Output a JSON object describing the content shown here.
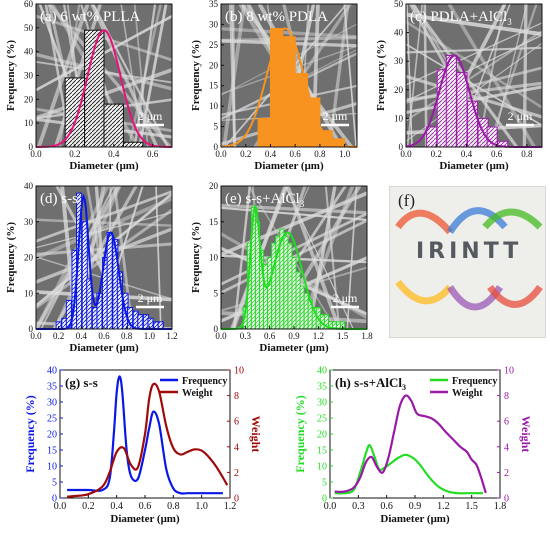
{
  "colors": {
    "sem_bg": "#6f6f6f",
    "fiber": "#dcdcdc",
    "pink": "#e8137a",
    "blue": "#0a18e6",
    "darkred": "#a00a0a",
    "green": "#22dd22",
    "purple": "#9a1aa8",
    "orange": "#f7931e",
    "black": "#111111"
  },
  "common": {
    "xlabel": "Diameter (μm)",
    "ylabel": "Frequency (%)",
    "scale_bar": "2 μm"
  },
  "panel_f": {
    "label": "(f)",
    "logo_text": "IRINTT"
  },
  "chart_data": [
    {
      "id": "a",
      "type": "bar",
      "title": "(a) 6 wt% PLLA",
      "xlabel": "Diameter (μm)",
      "ylabel": "Frequency (%)",
      "xlim": [
        0.0,
        0.7
      ],
      "ylim": [
        0,
        60
      ],
      "xticks": [
        "0.0",
        "0.2",
        "0.4",
        "0.6"
      ],
      "yticks": [
        "0",
        "10",
        "20",
        "30",
        "40",
        "50",
        "60"
      ],
      "bin_width": 0.1,
      "bins": [
        0.2,
        0.3,
        0.4,
        0.5
      ],
      "values": [
        29,
        49,
        18,
        2
      ],
      "fit_peak": 0.35,
      "fit_height": 49,
      "fit_sigma": 0.085
    },
    {
      "id": "b",
      "type": "bar",
      "title": "(b) 8 wt% PDLA",
      "xlabel": "Diameter (μm)",
      "ylabel": "Frequency (%)",
      "xlim": [
        0.0,
        1.1
      ],
      "ylim": [
        0,
        35
      ],
      "xticks": [
        "0.0",
        "0.2",
        "0.4",
        "0.6",
        "0.8",
        "1.0"
      ],
      "yticks": [
        "0",
        "5",
        "10",
        "15",
        "20",
        "25",
        "30",
        "35"
      ],
      "bin_width": 0.1,
      "bins": [
        0.35,
        0.45,
        0.55,
        0.65,
        0.75,
        0.85,
        0.95
      ],
      "values": [
        7,
        29,
        27,
        18,
        12,
        4,
        2
      ],
      "fit_peak": 0.52,
      "fit_height": 29,
      "fit_sigma": 0.15
    },
    {
      "id": "c",
      "type": "bar",
      "title": "(c) PDLA+AlCl",
      "title_sub": "3",
      "xlabel": "Diameter (μm)",
      "ylabel": "Frequency (%)",
      "xlim": [
        0.0,
        0.9
      ],
      "ylim": [
        0,
        50
      ],
      "xticks": [
        "0.0",
        "0.2",
        "0.4",
        "0.6",
        "0.8"
      ],
      "yticks": [
        "0",
        "10",
        "20",
        "30",
        "40",
        "50"
      ],
      "bin_width": 0.067,
      "bins": [
        0.17,
        0.24,
        0.3,
        0.37,
        0.44,
        0.51,
        0.57,
        0.64
      ],
      "values": [
        7,
        27,
        32,
        26,
        16,
        10,
        7,
        2
      ],
      "fit_peak": 0.32,
      "fit_height": 32,
      "fit_sigma": 0.1
    },
    {
      "id": "d",
      "type": "bar",
      "title": "(d) s-s",
      "xlabel": "Diameter (μm)",
      "ylabel": "Frequency (%)",
      "xlim": [
        0.0,
        1.2
      ],
      "ylim": [
        0,
        40
      ],
      "xticks": [
        "0.0",
        "0.2",
        "0.4",
        "0.6",
        "0.8",
        "1.0",
        "1.2"
      ],
      "yticks": [
        "0",
        "10",
        "20",
        "30",
        "40"
      ],
      "bin_width": 0.045,
      "bins": [
        0.2,
        0.25,
        0.29,
        0.34,
        0.38,
        0.43,
        0.47,
        0.52,
        0.56,
        0.61,
        0.65,
        0.7,
        0.74,
        0.79,
        0.83,
        0.88,
        0.92,
        0.97,
        1.01,
        1.06,
        1.1
      ],
      "values": [
        2,
        3,
        8,
        22,
        38,
        30,
        14,
        6,
        10,
        20,
        27,
        25,
        16,
        10,
        6,
        5,
        4,
        4,
        3,
        2,
        2
      ],
      "fit": [
        {
          "peak": 0.42,
          "height": 37,
          "sigma": 0.045
        },
        {
          "peak": 0.66,
          "height": 27,
          "sigma": 0.07
        }
      ]
    },
    {
      "id": "e",
      "type": "bar",
      "title": "(e) s-s+AlCl",
      "title_sub": "3",
      "xlabel": "Diameter (μm)",
      "ylabel": "Frequency (%)",
      "xlim": [
        0.0,
        1.8
      ],
      "ylim": [
        0,
        20
      ],
      "xticks": [
        "0.0",
        "0.3",
        "0.6",
        "0.9",
        "1.2",
        "1.5",
        "1.8"
      ],
      "yticks": [
        "0",
        "5",
        "10",
        "15",
        "20"
      ],
      "bin_width": 0.05,
      "bins": [
        0.3,
        0.35,
        0.4,
        0.45,
        0.5,
        0.55,
        0.6,
        0.65,
        0.7,
        0.75,
        0.8,
        0.85,
        0.9,
        0.95,
        1.0,
        1.05,
        1.1,
        1.15,
        1.2,
        1.25,
        1.3,
        1.35,
        1.4,
        1.45,
        1.5
      ],
      "values": [
        3,
        12,
        17,
        15,
        11,
        9,
        10,
        12,
        13,
        14,
        13,
        12,
        10,
        8,
        6,
        5,
        4,
        3,
        3,
        2,
        2,
        1,
        1,
        1,
        1
      ],
      "fit": [
        {
          "peak": 0.42,
          "height": 16,
          "sigma": 0.06
        },
        {
          "peak": 0.82,
          "height": 13.5,
          "sigma": 0.18
        }
      ]
    },
    {
      "id": "g",
      "type": "line",
      "title": "(g) s-s",
      "xlabel": "Diameter (μm)",
      "ylabel": "Frequency (%)",
      "y2label": "Weight",
      "xlim": [
        0.0,
        1.2
      ],
      "ylim": [
        0,
        40
      ],
      "y2lim": [
        0,
        10
      ],
      "xticks": [
        "0.0",
        "0.2",
        "0.4",
        "0.6",
        "0.8",
        "1.0",
        "1.2"
      ],
      "yticks": [
        "0",
        "5",
        "10",
        "15",
        "20",
        "25",
        "30",
        "35",
        "40"
      ],
      "y2ticks": [
        "0",
        "2",
        "4",
        "6",
        "8",
        "10"
      ],
      "legend": [
        "Frequency",
        "Weight"
      ],
      "series": [
        {
          "name": "Frequency",
          "axis": "left",
          "x": [
            0.05,
            0.1,
            0.2,
            0.3,
            0.35,
            0.38,
            0.4,
            0.42,
            0.44,
            0.47,
            0.5,
            0.55,
            0.6,
            0.63,
            0.66,
            0.7,
            0.75,
            0.8,
            0.85,
            0.9,
            1.0,
            1.1,
            1.15
          ],
          "y": [
            2.5,
            2.5,
            2.5,
            2.5,
            6,
            20,
            33,
            38,
            33,
            15,
            7,
            6,
            15,
            22,
            27,
            23,
            9,
            3,
            1.5,
            1.5,
            1.5,
            1.5,
            1.5
          ]
        },
        {
          "name": "Weight",
          "axis": "right",
          "x": [
            0.05,
            0.1,
            0.2,
            0.3,
            0.35,
            0.4,
            0.45,
            0.5,
            0.55,
            0.6,
            0.63,
            0.66,
            0.7,
            0.75,
            0.8,
            0.85,
            0.9,
            0.95,
            1.0,
            1.05,
            1.1,
            1.15,
            1.18
          ],
          "y": [
            0.1,
            0.15,
            0.3,
            0.9,
            2.0,
            3.6,
            3.9,
            2.6,
            2.4,
            5.0,
            7.8,
            8.9,
            8.3,
            5.6,
            3.9,
            3.4,
            3.6,
            3.8,
            3.7,
            3.2,
            2.5,
            1.6,
            1.0
          ]
        }
      ]
    },
    {
      "id": "h",
      "type": "line",
      "title": "(h) s-s+AlCl",
      "title_sub": "3",
      "xlabel": "Diameter (μm)",
      "ylabel": "Frequency (%)",
      "y2label": "Weight",
      "xlim": [
        0.0,
        1.8
      ],
      "ylim": [
        0,
        40
      ],
      "y2lim": [
        0,
        10
      ],
      "xticks": [
        "0.0",
        "0.3",
        "0.6",
        "0.9",
        "1.2",
        "1.5",
        "1.8"
      ],
      "yticks": [
        "0",
        "5",
        "10",
        "15",
        "20",
        "25",
        "30",
        "35",
        "40"
      ],
      "y2ticks": [
        "0",
        "2",
        "4",
        "6",
        "8",
        "10"
      ],
      "legend": [
        "Frequency",
        "Weight"
      ],
      "series": [
        {
          "name": "Frequency",
          "axis": "left",
          "x": [
            0.05,
            0.15,
            0.25,
            0.32,
            0.38,
            0.42,
            0.47,
            0.52,
            0.58,
            0.65,
            0.72,
            0.8,
            0.88,
            0.95,
            1.05,
            1.15,
            1.25,
            1.35,
            1.45,
            1.55,
            1.62
          ],
          "y": [
            1.5,
            1.5,
            2.5,
            8,
            14,
            16.5,
            13,
            9,
            9.5,
            11,
            12.5,
            13.5,
            12.5,
            10.5,
            6.5,
            3.5,
            2,
            1.5,
            1.5,
            1.5,
            1.5
          ]
        },
        {
          "name": "Weight",
          "axis": "right",
          "x": [
            0.05,
            0.15,
            0.25,
            0.32,
            0.38,
            0.44,
            0.5,
            0.56,
            0.62,
            0.68,
            0.74,
            0.8,
            0.86,
            0.92,
            1.0,
            1.08,
            1.15,
            1.22,
            1.3,
            1.38,
            1.45,
            1.5,
            1.55,
            1.6,
            1.65
          ],
          "y": [
            0.5,
            0.5,
            0.8,
            1.6,
            2.8,
            3.2,
            2.4,
            2.0,
            3.2,
            5.2,
            7.2,
            8.0,
            7.6,
            6.6,
            6.4,
            6.2,
            5.8,
            5.2,
            4.6,
            4.0,
            3.6,
            3.0,
            2.6,
            1.6,
            0.4
          ]
        }
      ]
    }
  ]
}
